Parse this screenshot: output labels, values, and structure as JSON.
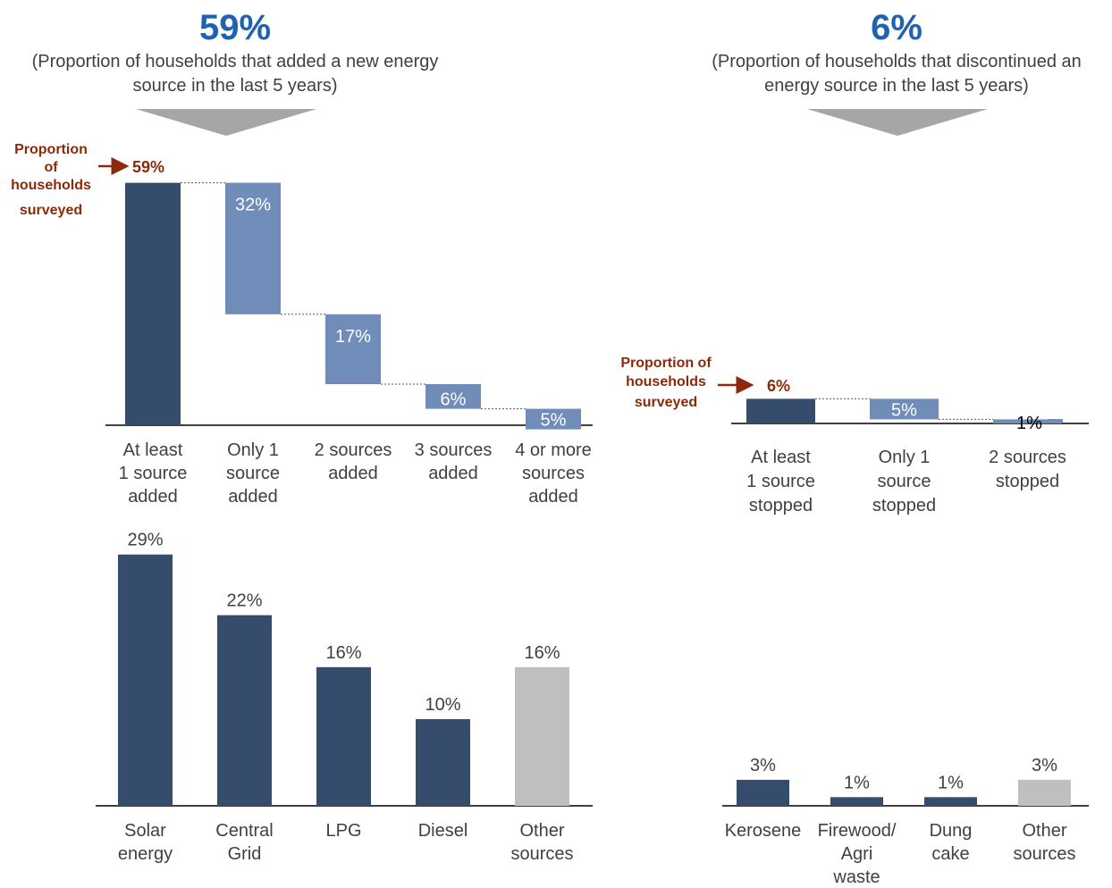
{
  "colors": {
    "dark_bar": "#364c6d",
    "light_bar": "#6f8db8",
    "other_bar": "#bfbfbf",
    "accent_blue": "#1f63b0",
    "annotation": "#8a2a0a",
    "arrow_grey": "#a6a6a6"
  },
  "left_panel": {
    "headline": "59%",
    "subtitle_line1": "(Proportion of households that added a new energy",
    "subtitle_line2": "source in the last 5 years)",
    "callout_lines": [
      "Proportion",
      "of",
      "households",
      "surveyed"
    ],
    "callout_value": "59%"
  },
  "right_panel": {
    "headline": "6%",
    "subtitle_line1": "(Proportion of households that discontinued an",
    "subtitle_line2": "energy source in the last 5 years)",
    "callout_lines": [
      "Proportion of",
      "households",
      "surveyed"
    ],
    "callout_value": "6%"
  },
  "chart_data": [
    {
      "type": "bar",
      "subtype": "waterfall",
      "categories": [
        [
          "At least",
          "1 source",
          "added"
        ],
        [
          "Only 1",
          "source",
          "added"
        ],
        [
          "2 sources",
          "added"
        ],
        [
          "3 sources",
          "added"
        ],
        [
          "4 or more",
          "sources",
          "added"
        ]
      ],
      "values": [
        59,
        32,
        17,
        6,
        5
      ],
      "labels": [
        "59%",
        "32%",
        "17%",
        "6%",
        "5%"
      ],
      "total_index": 0,
      "unit": "%"
    },
    {
      "type": "bar",
      "subtype": "waterfall",
      "categories": [
        [
          "At least",
          "1 source",
          "stopped"
        ],
        [
          "Only 1",
          "source",
          "stopped"
        ],
        [
          "2 sources",
          "stopped"
        ]
      ],
      "values": [
        6,
        5,
        1
      ],
      "labels": [
        "6%",
        "5%",
        "1%"
      ],
      "total_index": 0,
      "unit": "%"
    },
    {
      "type": "bar",
      "categories": [
        [
          "Solar",
          "energy"
        ],
        [
          "Central",
          "Grid"
        ],
        [
          "LPG"
        ],
        [
          "Diesel"
        ],
        [
          "Other",
          "sources"
        ]
      ],
      "values": [
        29,
        22,
        16,
        10,
        16
      ],
      "labels": [
        "29%",
        "22%",
        "16%",
        "10%",
        "16%"
      ],
      "highlight_last": true,
      "unit": "%"
    },
    {
      "type": "bar",
      "categories": [
        [
          "Kerosene"
        ],
        [
          "Firewood/",
          "Agri",
          "waste"
        ],
        [
          "Dung",
          "cake"
        ],
        [
          "Other",
          "sources"
        ]
      ],
      "values": [
        3,
        1,
        1,
        3
      ],
      "labels": [
        "3%",
        "1%",
        "1%",
        "3%"
      ],
      "highlight_last": true,
      "unit": "%"
    }
  ]
}
